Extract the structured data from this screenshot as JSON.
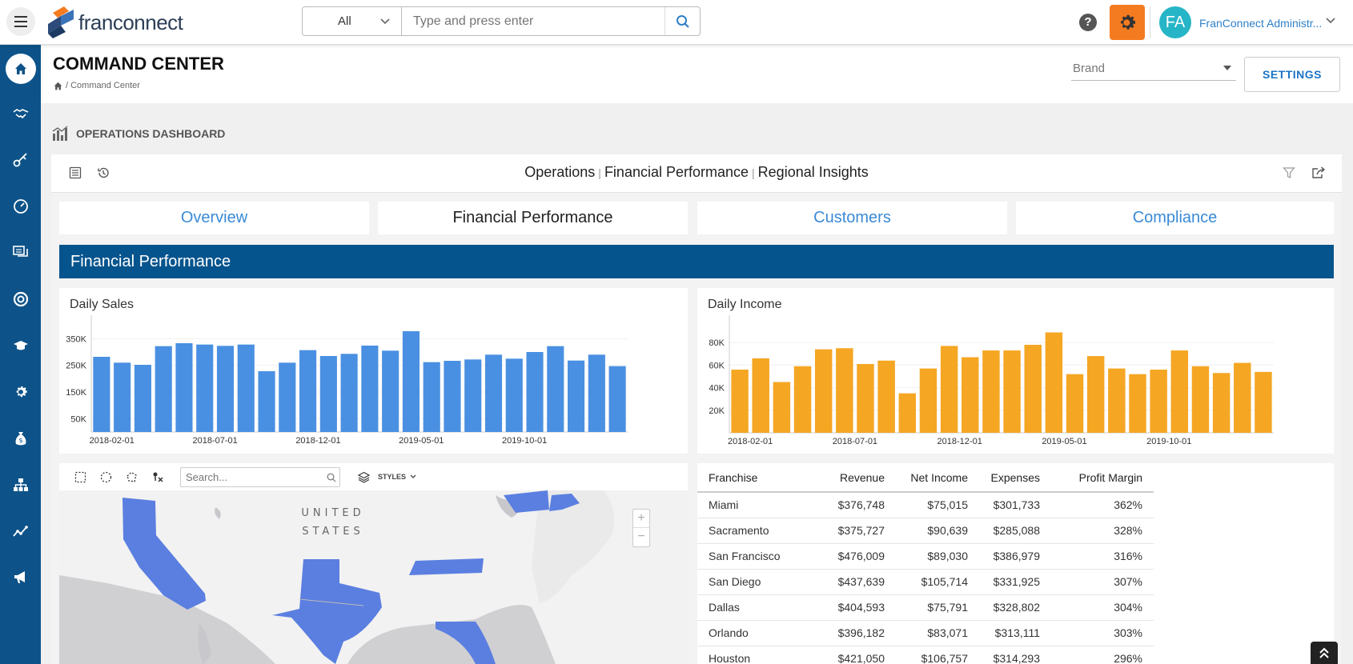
{
  "header": {
    "logo_text_bold": "fran",
    "logo_text": "connect",
    "search_scope": "All",
    "search_placeholder": "Type and press enter",
    "user_initials": "FA",
    "user_name": "FranConnect Administr..."
  },
  "sidebar": {
    "items": [
      "home-icon",
      "handshake-icon",
      "key-icon",
      "gauge-icon",
      "chat-icon",
      "lifebuoy-icon",
      "graduation-cap-icon",
      "gear-icon",
      "money-bag-icon",
      "org-chart-icon",
      "trend-icon",
      "megaphone-icon"
    ]
  },
  "page": {
    "title": "COMMAND CENTER",
    "breadcrumb": "/ Command Center",
    "brand_placeholder": "Brand",
    "settings_label": "SETTINGS",
    "section_title": "OPERATIONS DASHBOARD"
  },
  "dashboard": {
    "crumbs": [
      "Operations",
      "Financial Performance",
      "Regional Insights"
    ],
    "tabs": [
      {
        "label": "Overview",
        "active": false
      },
      {
        "label": "Financial Performance",
        "active": true
      },
      {
        "label": "Customers",
        "active": false
      },
      {
        "label": "Compliance",
        "active": false
      }
    ],
    "banner": "Financial Performance"
  },
  "chart_data": [
    {
      "type": "bar",
      "title": "Daily Sales",
      "color": "#4a90e2",
      "x_tick_labels": [
        "2018-02-01",
        "2018-07-01",
        "2018-12-01",
        "2019-05-01",
        "2019-10-01"
      ],
      "y_tick_labels": [
        "50K",
        "150K",
        "250K",
        "350K"
      ],
      "y_ticks": [
        50000,
        150000,
        250000,
        350000
      ],
      "ylim": [
        0,
        420000
      ],
      "values": [
        282000,
        260000,
        252000,
        322000,
        333000,
        328000,
        323000,
        328000,
        228000,
        260000,
        307000,
        285000,
        293000,
        324000,
        305000,
        378000,
        262000,
        267000,
        272000,
        290000,
        275000,
        300000,
        322000,
        268000,
        290000,
        247000
      ]
    },
    {
      "type": "bar",
      "title": "Daily Income",
      "color": "#f5a623",
      "x_tick_labels": [
        "2018-02-01",
        "2018-07-01",
        "2018-12-01",
        "2019-05-01",
        "2019-10-01"
      ],
      "y_tick_labels": [
        "20K",
        "40K",
        "60K",
        "80K"
      ],
      "y_ticks": [
        20000,
        40000,
        60000,
        80000
      ],
      "ylim": [
        0,
        100000
      ],
      "values": [
        56000,
        66000,
        45000,
        59000,
        74000,
        75000,
        61000,
        64000,
        35000,
        57000,
        77000,
        67000,
        73000,
        73000,
        78000,
        89000,
        52000,
        68000,
        57000,
        52000,
        56000,
        73000,
        59000,
        53000,
        62000,
        54000
      ]
    }
  ],
  "table": {
    "headers": [
      "Franchise",
      "Revenue",
      "Net Income",
      "Expenses",
      "Profit Margin"
    ],
    "rows": [
      [
        "Miami",
        "$376,748",
        "$75,015",
        "$301,733",
        "362%"
      ],
      [
        "Sacramento",
        "$375,727",
        "$90,639",
        "$285,088",
        "328%"
      ],
      [
        "San Francisco",
        "$476,009",
        "$89,030",
        "$386,979",
        "316%"
      ],
      [
        "San Diego",
        "$437,639",
        "$105,714",
        "$331,925",
        "307%"
      ],
      [
        "Dallas",
        "$404,593",
        "$75,791",
        "$328,802",
        "304%"
      ],
      [
        "Orlando",
        "$396,182",
        "$83,071",
        "$313,111",
        "303%"
      ],
      [
        "Houston",
        "$421,050",
        "$106,757",
        "$314,293",
        "296%"
      ]
    ]
  },
  "map": {
    "search_placeholder": "Search...",
    "styles_label": "STYLES",
    "country_label_1": "UNITED",
    "country_label_2": "STATES",
    "zoom_in": "+",
    "zoom_out": "−",
    "highlight_color": "#5b7fe0"
  }
}
